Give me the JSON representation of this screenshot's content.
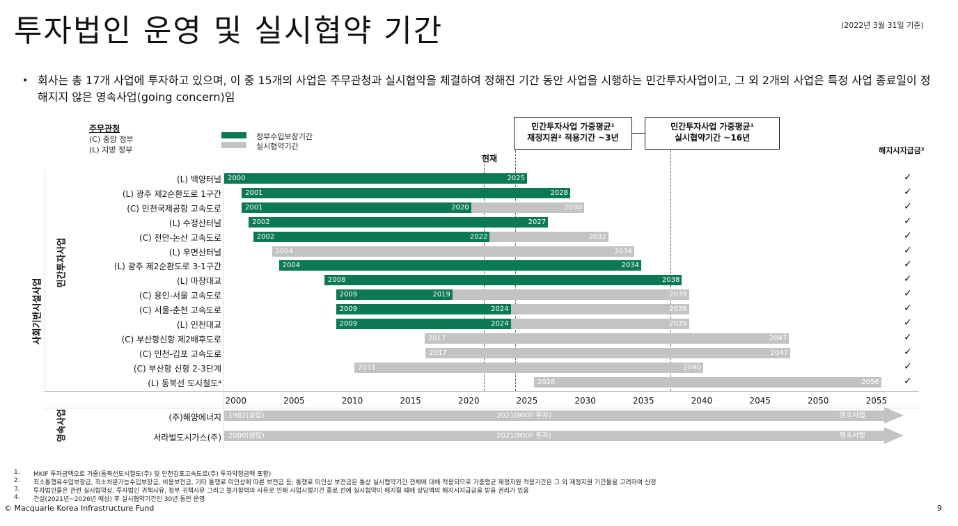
{
  "header": {
    "title": "투자법인 운영 및 실시협약 기간",
    "as_of": "(2022년 3월 31일 기준)"
  },
  "summary": {
    "bullet": "•",
    "text": "회사는 총 17개 사업에 투자하고 있으며, 이 중 15개의 사업은 주무관청과 실시협약을 체결하여 정해진 기간 동안 사업을 시행하는 민간투자사업이고, 그 외 2개의 사업은 특정 사업 종료일이 정해지지 않은 영속사업(going concern)임"
  },
  "legend": {
    "authority_heading": "주무관청",
    "authority_central": "(C) 중앙 정부",
    "authority_local": "(L) 지방 정부",
    "green_label": "정부수입보장기간",
    "gray_label": "실시협약기간",
    "green_color": "#0b7a54",
    "gray_color": "#c3c3c3"
  },
  "callouts": {
    "support": {
      "line1": "민간투자사업 가중평균¹",
      "line2": "재정지원² 적용기간 ~3년"
    },
    "concession": {
      "line1": "민간투자사업 가중평균¹",
      "line2": "실시협약기간 ~16년"
    }
  },
  "now_label": "현재",
  "termination_heading": "해지시지급금³",
  "groups": {
    "infra": "사회기반시설사업",
    "ppp": "민간투자사업",
    "going": "영속사업"
  },
  "chart_data": {
    "type": "gantt",
    "x_min": 1999,
    "x_max": 2056.5,
    "now_year": 2021.3,
    "support_avg_year": 2024,
    "concession_avg_year": 2037.3,
    "ticks": [
      "2000",
      "2005",
      "2010",
      "2015",
      "2020",
      "2025",
      "2030",
      "2035",
      "2040",
      "2045",
      "2050",
      "2055"
    ],
    "projects": [
      {
        "name": "(L) 백양터널",
        "start": 1999,
        "green_end": 2025,
        "end": 2025,
        "start_label": "2000",
        "green_label": "",
        "end_label": "2025",
        "check": "✓"
      },
      {
        "name": "(L) 광주 제2순환도로 1구간",
        "start": 2000.5,
        "green_end": 2028.7,
        "end": 2028.7,
        "start_label": "2001",
        "green_label": "",
        "end_label": "2028",
        "check": "✓"
      },
      {
        "name": "(C) 인천국제공항 고속도로",
        "start": 2000.5,
        "green_end": 2020.2,
        "end": 2029.9,
        "start_label": "2001",
        "green_label": "2020",
        "end_label": "2030",
        "check": "✓"
      },
      {
        "name": "(L) 수정산터널",
        "start": 2001.1,
        "green_end": 2026.8,
        "end": 2026.8,
        "start_label": "2002",
        "green_label": "",
        "end_label": "2027",
        "check": "✓"
      },
      {
        "name": "(C) 천안-논산 고속도로",
        "start": 2001.5,
        "green_end": 2021.8,
        "end": 2032,
        "start_label": "2002",
        "green_label": "2022",
        "end_label": "2032",
        "check": "✓"
      },
      {
        "name": "(L) 우면산터널",
        "start": 2003.1,
        "green_end": 2003.1,
        "end": 2034.2,
        "start_label": "2004",
        "green_label": "",
        "end_label": "2034",
        "check": "✓"
      },
      {
        "name": "(L) 광주 제2순환도로 3-1구간",
        "start": 2003.7,
        "green_end": 2034.8,
        "end": 2034.8,
        "start_label": "2004",
        "green_label": "",
        "end_label": "2034",
        "check": "✓"
      },
      {
        "name": "(L) 마창대교",
        "start": 2007.6,
        "green_end": 2038.3,
        "end": 2038.3,
        "start_label": "2008",
        "green_label": "",
        "end_label": "2038",
        "check": "✓"
      },
      {
        "name": "(C) 용인-서울 고속도로",
        "start": 2008.6,
        "green_end": 2018.6,
        "end": 2038.9,
        "start_label": "2009",
        "green_label": "2019",
        "end_label": "2039",
        "check": "✓"
      },
      {
        "name": "(C) 서울-춘천 고속도로",
        "start": 2008.6,
        "green_end": 2023.6,
        "end": 2038.9,
        "start_label": "2009",
        "green_label": "2024",
        "end_label": "2039",
        "check": "✓"
      },
      {
        "name": "(L) 인천대교",
        "start": 2008.6,
        "green_end": 2023.6,
        "end": 2038.9,
        "start_label": "2009",
        "green_label": "2024",
        "end_label": "2039",
        "check": "✓"
      },
      {
        "name": "(C) 부산항신항 제2배후도로",
        "start": 2016.2,
        "green_end": 2016.2,
        "end": 2047.5,
        "start_label": "2017",
        "green_label": "",
        "end_label": "2047",
        "check": "✓"
      },
      {
        "name": "(C) 인천-김포 고속도로",
        "start": 2016.3,
        "green_end": 2016.3,
        "end": 2047.6,
        "start_label": "2017",
        "green_label": "",
        "end_label": "2047",
        "check": "✓"
      },
      {
        "name": "(C) 부산항 신항 2-3단계",
        "start": 2010.2,
        "green_end": 2010.2,
        "end": 2040.1,
        "start_label": "2011",
        "green_label": "",
        "end_label": "2040",
        "check": "✓"
      },
      {
        "name": "(L) 동북선 도시철도⁴",
        "start": 2025.6,
        "green_end": 2025.6,
        "end": 2055.4,
        "start_label": "2026",
        "green_label": "",
        "end_label": "2056",
        "check": "✓"
      }
    ],
    "going_concerns": [
      {
        "name": "(주)해양에너지",
        "label_start": "1982(설립)",
        "label_mid": "2021(MKIF 투자)",
        "label_end": "영속사업"
      },
      {
        "name": "서라벌도시가스(주)",
        "label_start": "2000(설립)",
        "label_mid": "2021(MKIF 투자)",
        "label_end": "영속사업"
      }
    ]
  },
  "footnotes": [
    {
      "num": "1.",
      "text": "MKIF 투자금액으로 가중(동북선도시철도(주) 및 인천김포고속도로(주) 투자약정금액 포함)"
    },
    {
      "num": "2.",
      "text": "최소통행료수입보장금, 최소처분가능수입보장금, 비용보전금, 기타 통행료 미인상에 따른 보전금 등; 통행료 미인상 보전금은 통상 실시협약기간 전체에 대해 적용되므로 가중평균 재정지원 적용기간은 그 외 재정지원 기간들을 고려하여 산정"
    },
    {
      "num": "3.",
      "text": "투자법인들은 관련 실시협약상, 투자법인 귀책사유, 정부 귀책사유 그리고 불가항력의 사유로 인해 사업시행기간 종료 전에 실시협약이 해지될 때에 상당액의 해지시지급금을 받을 권리가 있음"
    },
    {
      "num": "4.",
      "text": "건설(2021년~2026년 예상) 후 실시협약기간인 30년 동안 운영"
    }
  ],
  "footer": {
    "copyright": "© Macquarie Korea Infrastructure Fund",
    "page": "9"
  }
}
